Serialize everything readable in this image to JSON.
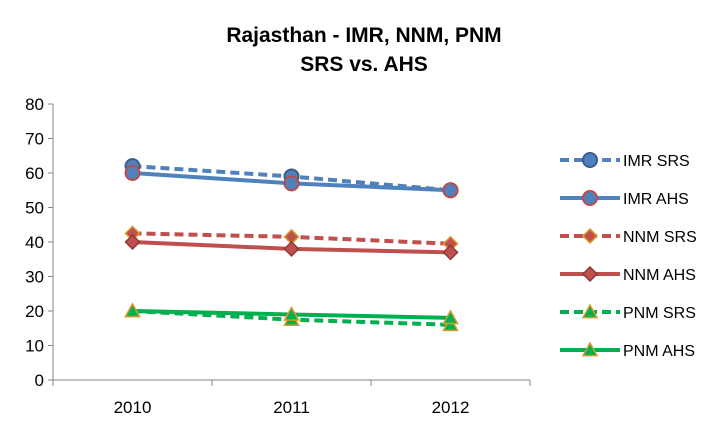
{
  "chart_data": {
    "type": "line",
    "title": "Rajasthan - IMR, NNM, PNM",
    "subtitle": "SRS vs. AHS",
    "categories": [
      "2010",
      "2011",
      "2012"
    ],
    "ylim": [
      0,
      80
    ],
    "yticks": [
      0,
      10,
      20,
      30,
      40,
      50,
      60,
      70,
      80
    ],
    "grid": false,
    "legend_position": "right",
    "series": [
      {
        "name": "IMR SRS",
        "values": [
          62,
          59,
          55
        ],
        "color": "#4F81BD",
        "line_style": "dashed",
        "marker": "circle"
      },
      {
        "name": "IMR AHS",
        "values": [
          60,
          57,
          55
        ],
        "color": "#4F81BD",
        "line_style": "solid",
        "marker": "circle"
      },
      {
        "name": "NNM SRS",
        "values": [
          42.5,
          41.5,
          39.5
        ],
        "color": "#C0504D",
        "line_style": "dashed",
        "marker": "diamond"
      },
      {
        "name": "NNM AHS",
        "values": [
          40,
          38,
          37
        ],
        "color": "#C0504D",
        "line_style": "solid",
        "marker": "diamond"
      },
      {
        "name": "PNM SRS",
        "values": [
          20,
          17.5,
          16
        ],
        "color": "#00B050",
        "line_style": "dashed",
        "marker": "triangle"
      },
      {
        "name": "PNM AHS",
        "values": [
          20,
          19,
          18
        ],
        "color": "#00B050",
        "line_style": "solid",
        "marker": "triangle"
      }
    ]
  }
}
